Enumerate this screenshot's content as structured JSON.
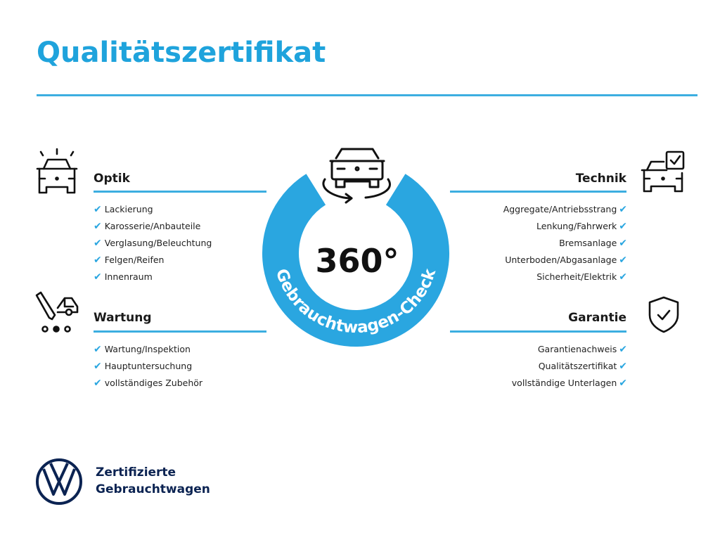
{
  "title": "Qualitätszertifikat",
  "center": {
    "big": "360°",
    "ring_text": "Gebrauchtwagen-Check",
    "accent": "#2aa6e0"
  },
  "sections": {
    "optik": {
      "heading": "Optik",
      "icon": "car-lights-icon",
      "items": [
        "Lackierung",
        "Karosserie/Anbauteile",
        "Verglasung/Beleuchtung",
        "Felgen/Reifen",
        "Innenraum"
      ]
    },
    "wartung": {
      "heading": "Wartung",
      "icon": "van-wrench-icon",
      "items": [
        "Wartung/Inspektion",
        "Hauptuntersuchung",
        "vollständiges Zubehör"
      ]
    },
    "technik": {
      "heading": "Technik",
      "icon": "car-checkbox-icon",
      "items": [
        "Aggregate/Antriebsstrang",
        "Lenkung/Fahrwerk",
        "Bremsanlage",
        "Unterboden/Abgasanlage",
        "Sicherheit/Elektrik"
      ]
    },
    "garantie": {
      "heading": "Garantie",
      "icon": "shield-check-icon",
      "items": [
        "Garantienachweis",
        "Qualitätszertifikat",
        "vollständige Unterlagen"
      ]
    }
  },
  "check_glyph": "✔",
  "footer": {
    "line1": "Zertifizierte",
    "line2": "Gebrauchtwagen",
    "logo": "vw-logo",
    "color": "#0b2352"
  }
}
